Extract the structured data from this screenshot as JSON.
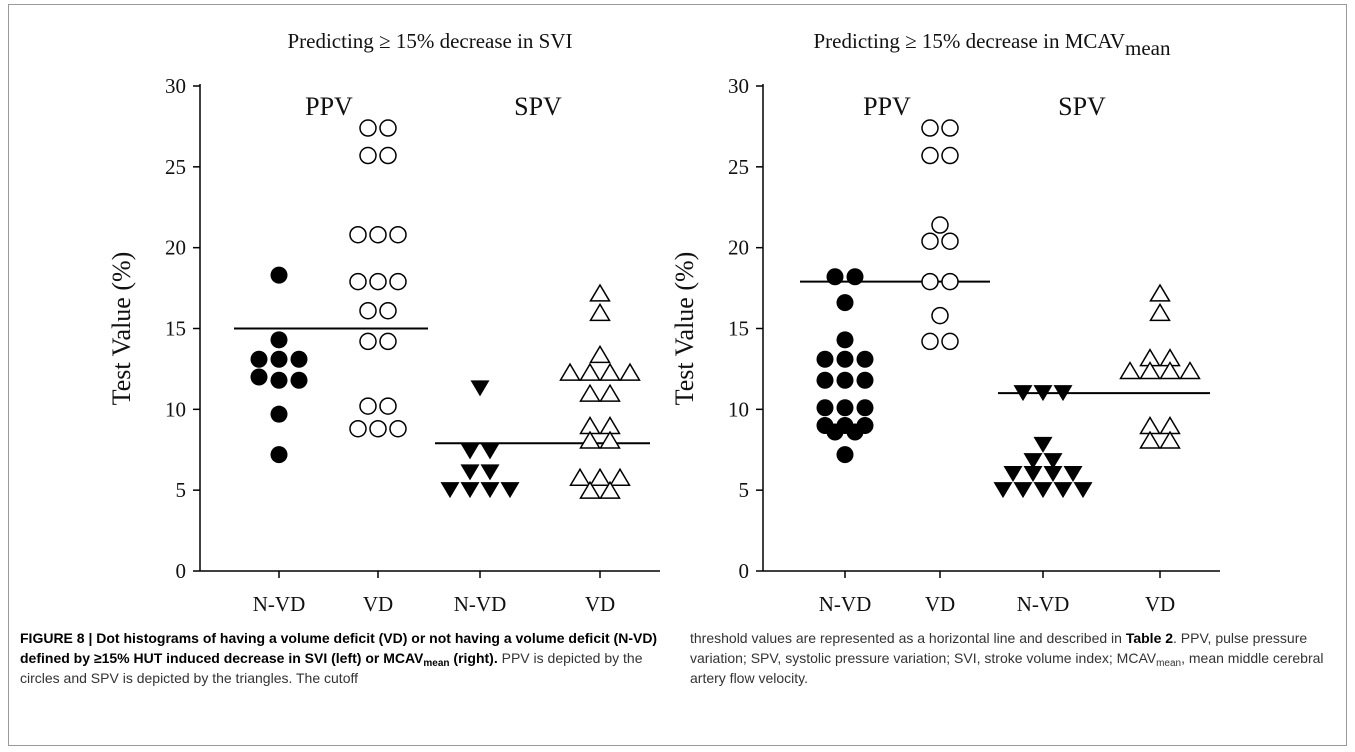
{
  "chart_data": [
    {
      "type": "scatter",
      "title": "Predicting ≥ 15%  decrease in SVI",
      "ylabel": "Test Value (%)",
      "ylim": [
        0,
        30
      ],
      "yticks": [
        0,
        5,
        10,
        15,
        20,
        25,
        30
      ],
      "categories": [
        "N-VD",
        "VD",
        "N-VD",
        "VD"
      ],
      "group_labels": [
        "PPV",
        "SPV"
      ],
      "series": [
        {
          "name": "PPV N-VD",
          "marker": "filled-circle",
          "cat": 0,
          "values": [
            18.3,
            14.3,
            13.1,
            13.1,
            13.1,
            12.0,
            11.8,
            11.8,
            9.7,
            7.2
          ]
        },
        {
          "name": "PPV VD",
          "marker": "open-circle",
          "cat": 1,
          "values": [
            27.4,
            27.4,
            25.7,
            25.7,
            20.8,
            20.8,
            20.8,
            17.9,
            17.9,
            17.9,
            16.1,
            16.1,
            14.2,
            14.2,
            10.2,
            10.2,
            8.8,
            8.8,
            8.8
          ]
        },
        {
          "name": "SPV N-VD",
          "marker": "filled-triangle-down",
          "cat": 2,
          "values": [
            11.3,
            7.4,
            7.4,
            6.1,
            6.1,
            5.0,
            5.0,
            5.0,
            5.0
          ]
        },
        {
          "name": "SPV VD",
          "marker": "open-triangle-up",
          "cat": 3,
          "values": [
            17.2,
            16.0,
            13.4,
            12.3,
            12.3,
            12.3,
            12.3,
            11.0,
            11.0,
            9.0,
            9.0,
            8.1,
            8.1,
            5.8,
            5.8,
            5.8,
            5.0,
            5.0
          ]
        }
      ],
      "cutoffs": [
        {
          "group": "PPV",
          "value": 15.0
        },
        {
          "group": "SPV",
          "value": 7.9
        }
      ]
    },
    {
      "type": "scatter",
      "title": "Predicting ≥ 15%  decrease in MCAV",
      "title_sub": "mean",
      "ylabel": "Test Value (%)",
      "ylim": [
        0,
        30
      ],
      "yticks": [
        0,
        5,
        10,
        15,
        20,
        25,
        30
      ],
      "categories": [
        "N-VD",
        "VD",
        "N-VD",
        "VD"
      ],
      "group_labels": [
        "PPV",
        "SPV"
      ],
      "series": [
        {
          "name": "PPV N-VD",
          "marker": "filled-circle",
          "cat": 0,
          "values": [
            18.2,
            18.2,
            16.6,
            14.3,
            13.1,
            13.1,
            13.1,
            11.8,
            11.8,
            11.8,
            10.1,
            10.1,
            10.1,
            9.0,
            9.0,
            9.0,
            8.6,
            8.6,
            7.2
          ]
        },
        {
          "name": "PPV VD",
          "marker": "open-circle",
          "cat": 1,
          "values": [
            27.4,
            27.4,
            25.7,
            25.7,
            21.4,
            20.4,
            20.4,
            17.9,
            17.9,
            15.8,
            14.2,
            14.2
          ]
        },
        {
          "name": "SPV N-VD",
          "marker": "filled-triangle-down",
          "cat": 2,
          "values": [
            11.0,
            11.0,
            11.0,
            7.8,
            6.8,
            6.8,
            6.0,
            6.0,
            6.0,
            6.0,
            5.0,
            5.0,
            5.0,
            5.0,
            5.0
          ]
        },
        {
          "name": "SPV VD",
          "marker": "open-triangle-up",
          "cat": 3,
          "values": [
            17.2,
            16.0,
            13.2,
            13.2,
            12.4,
            12.4,
            12.4,
            12.4,
            9.0,
            9.0,
            8.1,
            8.1
          ]
        }
      ],
      "cutoffs": [
        {
          "group": "PPV",
          "value": 17.9
        },
        {
          "group": "SPV",
          "value": 11.0
        }
      ]
    }
  ],
  "caption": {
    "figure_label": "FIGURE 8 | Dot histograms of having a volume deficit (VD) or not having a volume deficit (N-VD) defined by ≥15% HUT induced decrease in SVI (left) or MCAV",
    "figure_label_sub": "mean",
    "figure_label_end": " (right).",
    "body_1": " PPV is depicted by the circles and SPV is depicted by the triangles. The cutoff threshold values are represented as a horizontal line and described in ",
    "table_ref": "Table 2",
    "body_2": ". PPV, pulse pressure variation; SPV, systolic pressure variation; SVI, stroke volume index; MCAV",
    "body_2_sub": "mean",
    "body_3": ", mean middle cerebral artery flow velocity."
  }
}
